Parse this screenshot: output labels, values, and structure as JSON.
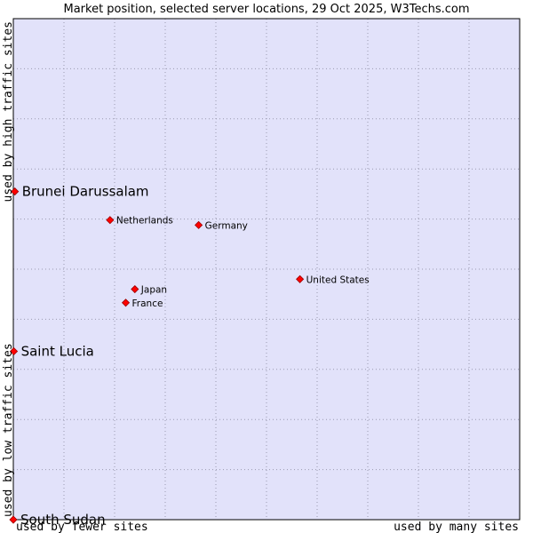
{
  "colors": {
    "plot_background": "#e2e2fa",
    "frame": "#000000",
    "grid": "#9a9ab0",
    "marker": "#ff0000",
    "marker_outline": "#9a0000"
  },
  "chart_data": {
    "type": "scatter",
    "title": "Market position, selected server locations, 29 Oct 2025, W3Techs.com",
    "xlabel_left": "used by fewer sites",
    "xlabel_right": "used by many sites",
    "ylabel_bottom": "used by low traffic sites",
    "ylabel_top": "used by high traffic sites",
    "xlim": [
      0,
      100
    ],
    "ylim": [
      0,
      100
    ],
    "grid": true,
    "grid_divisions": {
      "x": 10,
      "y": 10
    },
    "points": [
      {
        "label": "Brunei Darussalam",
        "x": 0.3,
        "y": 65.5,
        "emphasis": "large"
      },
      {
        "label": "Saint Lucia",
        "x": 0.1,
        "y": 33.6,
        "emphasis": "large"
      },
      {
        "label": "South Sudan",
        "x": 0.0,
        "y": 0.0,
        "emphasis": "large"
      },
      {
        "label": "Netherlands",
        "x": 19.1,
        "y": 59.8,
        "emphasis": "small"
      },
      {
        "label": "Germany",
        "x": 36.6,
        "y": 58.8,
        "emphasis": "small"
      },
      {
        "label": "United States",
        "x": 56.6,
        "y": 48.0,
        "emphasis": "small"
      },
      {
        "label": "Japan",
        "x": 24.0,
        "y": 46.0,
        "emphasis": "small"
      },
      {
        "label": "France",
        "x": 22.2,
        "y": 43.3,
        "emphasis": "small"
      }
    ]
  }
}
